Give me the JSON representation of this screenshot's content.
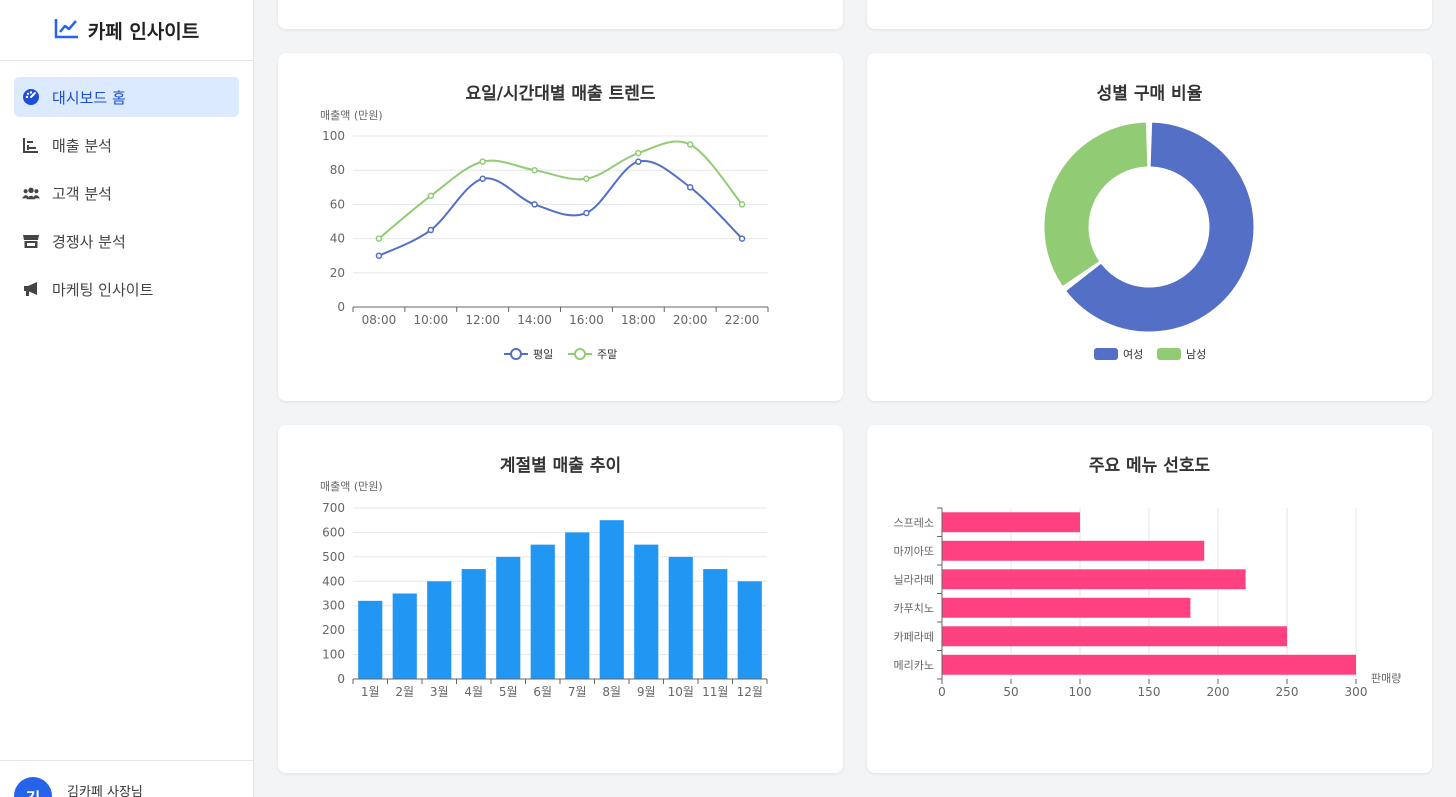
{
  "app": {
    "title": "카페 인사이트"
  },
  "sidebar": {
    "items": [
      {
        "label": "대시보드 홈",
        "icon": "dashboard-icon",
        "active": true
      },
      {
        "label": "매출 분석",
        "icon": "bar-chart-icon",
        "active": false
      },
      {
        "label": "고객 분석",
        "icon": "users-icon",
        "active": false
      },
      {
        "label": "경쟁사 분석",
        "icon": "store-icon",
        "active": false
      },
      {
        "label": "마케팅 인사이트",
        "icon": "megaphone-icon",
        "active": false
      }
    ]
  },
  "user": {
    "initial": "김",
    "name": "김카페 사장님"
  },
  "colors": {
    "accent": "#2563eb",
    "weekday": "#5470c6",
    "weekend": "#91cc75",
    "bar": "#2196f3",
    "menu": "#ff4081"
  },
  "charts": {
    "trend": {
      "title": "요일/시간대별 매출 트렌드",
      "ylabel": "매출액 (만원)"
    },
    "gender": {
      "title": "성별 구매 비율"
    },
    "seasonal": {
      "title": "계절별 매출 추이",
      "ylabel": "매출액 (만원)"
    },
    "menu": {
      "title": "주요 메뉴 선호도",
      "xlabel": "판매량"
    }
  },
  "chart_data": [
    {
      "type": "line",
      "title": "요일/시간대별 매출 트렌드",
      "ylabel": "매출액 (만원)",
      "x": [
        "08:00",
        "10:00",
        "12:00",
        "14:00",
        "16:00",
        "18:00",
        "20:00",
        "22:00"
      ],
      "ylim": [
        0,
        100
      ],
      "yticks": [
        0,
        20,
        40,
        60,
        80,
        100
      ],
      "series": [
        {
          "name": "평일",
          "values": [
            30,
            45,
            75,
            60,
            55,
            85,
            70,
            40
          ]
        },
        {
          "name": "주말",
          "values": [
            40,
            65,
            85,
            80,
            75,
            90,
            95,
            60
          ]
        }
      ],
      "legend": "bottom"
    },
    {
      "type": "pie",
      "title": "성별 구매 비율",
      "slices": [
        {
          "name": "여성",
          "value": 65
        },
        {
          "name": "남성",
          "value": 35
        }
      ],
      "legend": "bottom"
    },
    {
      "type": "bar",
      "title": "계절별 매출 추이",
      "ylabel": "매출액 (만원)",
      "categories": [
        "1월",
        "2월",
        "3월",
        "4월",
        "5월",
        "6월",
        "7월",
        "8월",
        "9월",
        "10월",
        "11월",
        "12월"
      ],
      "values": [
        320,
        350,
        400,
        450,
        500,
        550,
        600,
        650,
        550,
        500,
        450,
        400
      ],
      "ylim": [
        0,
        700
      ],
      "yticks": [
        0,
        100,
        200,
        300,
        400,
        500,
        600,
        700
      ]
    },
    {
      "type": "bar",
      "orientation": "horizontal",
      "title": "주요 메뉴 선호도",
      "xlabel": "판매량",
      "categories": [
        "메리카노",
        "카페라떼",
        "카푸치노",
        "닐라라떼",
        "마끼아또",
        "스프레소"
      ],
      "values": [
        300,
        250,
        180,
        220,
        190,
        100
      ],
      "xlim": [
        0,
        300
      ],
      "xticks": [
        0,
        50,
        100,
        150,
        200,
        250,
        300
      ]
    }
  ]
}
